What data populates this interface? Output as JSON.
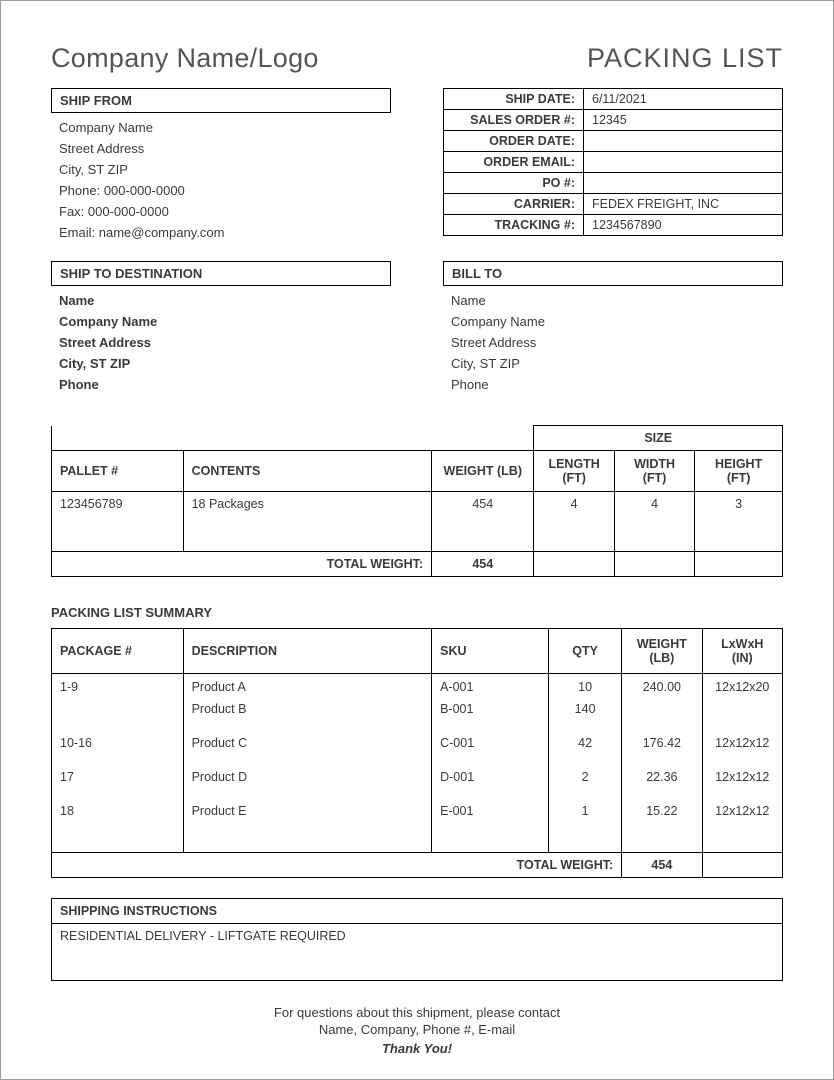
{
  "header": {
    "company_logo_text": "Company Name/Logo",
    "doc_title": "PACKING LIST"
  },
  "ship_from": {
    "header": "SHIP FROM",
    "company": "Company Name",
    "street": "Street Address",
    "city": "City, ST  ZIP",
    "phone": "Phone: 000-000-0000",
    "fax": "Fax: 000-000-0000",
    "email": "Email: name@company.com"
  },
  "order_info": {
    "labels": {
      "ship_date": "SHIP DATE:",
      "sales_order": "SALES ORDER #:",
      "order_date": "ORDER DATE:",
      "order_email": "ORDER EMAIL:",
      "po": "PO #:",
      "carrier": "CARRIER:",
      "tracking": "TRACKING #:"
    },
    "values": {
      "ship_date": "6/11/2021",
      "sales_order": "12345",
      "order_date": "",
      "order_email": "",
      "po": "",
      "carrier": "FEDEX FREIGHT, INC",
      "tracking": "1234567890"
    }
  },
  "ship_to": {
    "header": "SHIP TO DESTINATION",
    "name": "Name",
    "company": "Company Name",
    "street": "Street Address",
    "city": "City, ST  ZIP",
    "phone": "Phone"
  },
  "bill_to": {
    "header": "BILL TO",
    "name": "Name",
    "company": "Company Name",
    "street": "Street Address",
    "city": "City, ST  ZIP",
    "phone": "Phone"
  },
  "pallet_table": {
    "size_header": "SIZE",
    "headers": {
      "pallet": "PALLET #",
      "contents": "CONTENTS",
      "weight": "WEIGHT (LB)",
      "length": "LENGTH (FT)",
      "width": "WIDTH (FT)",
      "height": "HEIGHT (FT)"
    },
    "rows": [
      {
        "pallet": "123456789",
        "contents": "18 Packages",
        "weight": "454",
        "length": "4",
        "width": "4",
        "height": "3"
      }
    ],
    "total_label": "TOTAL WEIGHT:",
    "total_weight": "454",
    "col_widths": {
      "pallet": "18%",
      "contents": "34%",
      "weight": "14%",
      "length": "11%",
      "width": "11%",
      "height": "12%"
    }
  },
  "summary": {
    "heading": "PACKING LIST SUMMARY",
    "headers": {
      "package": "PACKAGE #",
      "description": "DESCRIPTION",
      "sku": "SKU",
      "qty": "QTY",
      "weight": "WEIGHT (LB)",
      "dims": "LxWxH (IN)"
    },
    "rows": [
      {
        "package": "1-9",
        "description": "Product A",
        "sku": "A-001",
        "qty": "10",
        "weight": "240.00",
        "dims": "12x12x20",
        "gap_after": false
      },
      {
        "package": "",
        "description": "Product B",
        "sku": "B-001",
        "qty": "140",
        "weight": "",
        "dims": "",
        "gap_after": true
      },
      {
        "package": "10-16",
        "description": "Product C",
        "sku": "C-001",
        "qty": "42",
        "weight": "176.42",
        "dims": "12x12x12",
        "gap_after": true
      },
      {
        "package": "17",
        "description": "Product D",
        "sku": "D-001",
        "qty": "2",
        "weight": "22.36",
        "dims": "12x12x12",
        "gap_after": true
      },
      {
        "package": "18",
        "description": "Product E",
        "sku": "E-001",
        "qty": "1",
        "weight": "15.22",
        "dims": "12x12x12",
        "gap_after": false
      }
    ],
    "total_label": "TOTAL WEIGHT:",
    "total_weight": "454",
    "col_widths": {
      "package": "18%",
      "description": "34%",
      "sku": "16%",
      "qty": "10%",
      "weight": "11%",
      "dims": "11%"
    }
  },
  "instructions": {
    "header": "SHIPPING INSTRUCTIONS",
    "body": "RESIDENTIAL DELIVERY - LIFTGATE REQUIRED"
  },
  "footer": {
    "line1": "For questions about this shipment, please contact",
    "line2": "Name, Company, Phone #, E-mail",
    "thanks": "Thank You!"
  },
  "style": {
    "border_color": "#000000",
    "text_color": "#3a3a3a",
    "background": "#ffffff",
    "font_family": "Arial"
  }
}
